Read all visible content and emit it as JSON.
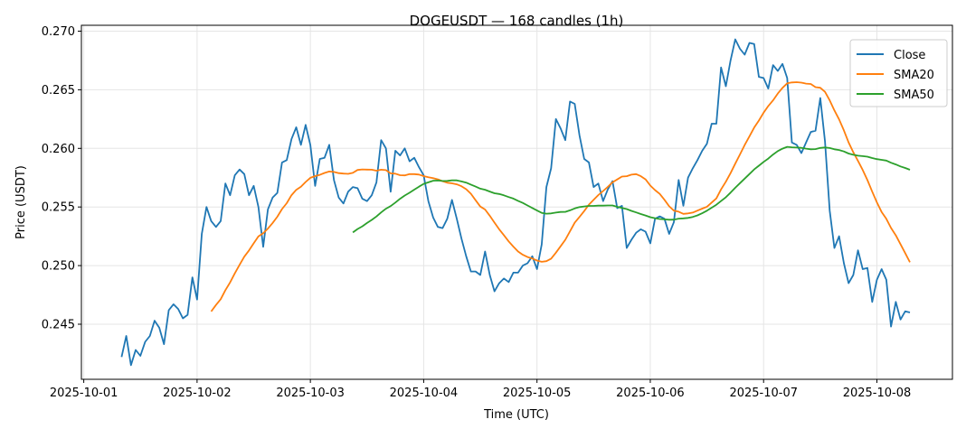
{
  "chart_data": {
    "type": "line",
    "title": "DOGEUSDT — 168 candles (1h)",
    "xlabel": "Time (UTC)",
    "ylabel": "Price (USDT)",
    "ylim": [
      0.2403,
      0.2705
    ],
    "xlim_hours_from_2025-10-01": [
      -0.5,
      184
    ],
    "grid": true,
    "legend_position": "top-right",
    "start_time": "2025-10-01 08:00",
    "interval_hours": 1,
    "x_ticks": [
      "2025-10-01",
      "2025-10-02",
      "2025-10-03",
      "2025-10-04",
      "2025-10-05",
      "2025-10-06",
      "2025-10-07",
      "2025-10-08"
    ],
    "y_ticks": [
      "0.245",
      "0.250",
      "0.255",
      "0.260",
      "0.265",
      "0.270"
    ],
    "series": [
      {
        "name": "Close",
        "color": "#1f77b4",
        "values": [
          0.2422,
          0.244,
          0.2415,
          0.2428,
          0.2423,
          0.2435,
          0.244,
          0.2453,
          0.2447,
          0.2433,
          0.2462,
          0.2467,
          0.2463,
          0.2455,
          0.2458,
          0.249,
          0.2471,
          0.2527,
          0.255,
          0.2538,
          0.2533,
          0.2538,
          0.257,
          0.256,
          0.2577,
          0.2582,
          0.2578,
          0.256,
          0.2568,
          0.255,
          0.2516,
          0.2548,
          0.2558,
          0.2562,
          0.2588,
          0.259,
          0.2608,
          0.2618,
          0.2603,
          0.262,
          0.2603,
          0.2568,
          0.2591,
          0.2592,
          0.2603,
          0.2573,
          0.2558,
          0.2553,
          0.2563,
          0.2567,
          0.2566,
          0.2557,
          0.2555,
          0.256,
          0.2571,
          0.2607,
          0.26,
          0.2563,
          0.2598,
          0.2594,
          0.26,
          0.2589,
          0.2592,
          0.2584,
          0.2577,
          0.2555,
          0.2541,
          0.2533,
          0.2532,
          0.254,
          0.2556,
          0.254,
          0.2523,
          0.2508,
          0.2495,
          0.2495,
          0.2492,
          0.2512,
          0.2492,
          0.2478,
          0.2485,
          0.2489,
          0.2486,
          0.2494,
          0.2494,
          0.25,
          0.2502,
          0.2508,
          0.2497,
          0.2518,
          0.2567,
          0.2583,
          0.2625,
          0.2617,
          0.2607,
          0.264,
          0.2638,
          0.2611,
          0.2591,
          0.2588,
          0.2567,
          0.257,
          0.2555,
          0.2565,
          0.2572,
          0.2549,
          0.2551,
          0.2515,
          0.2522,
          0.2528,
          0.2531,
          0.2529,
          0.2519,
          0.254,
          0.2542,
          0.254,
          0.2527,
          0.2537,
          0.2573,
          0.2551,
          0.2575,
          0.2583,
          0.259,
          0.2598,
          0.2604,
          0.2621,
          0.2621,
          0.2669,
          0.2653,
          0.2675,
          0.2693,
          0.2685,
          0.268,
          0.269,
          0.2689,
          0.2661,
          0.266,
          0.2651,
          0.2671,
          0.2666,
          0.2672,
          0.266,
          0.2605,
          0.2603,
          0.2596,
          0.2605,
          0.2614,
          0.2615,
          0.2643,
          0.2606,
          0.2547,
          0.2515,
          0.2525,
          0.2502,
          0.2485,
          0.2492,
          0.2513,
          0.2497,
          0.2498,
          0.2469,
          0.2488,
          0.2497,
          0.2488,
          0.2448,
          0.2469,
          0.2454,
          0.2461,
          0.246
        ]
      },
      {
        "name": "SMA20",
        "color": "#ff7f0e",
        "window": 20,
        "of": "Close"
      },
      {
        "name": "SMA50",
        "color": "#2ca02c",
        "window": 50,
        "of": "Close"
      }
    ]
  }
}
